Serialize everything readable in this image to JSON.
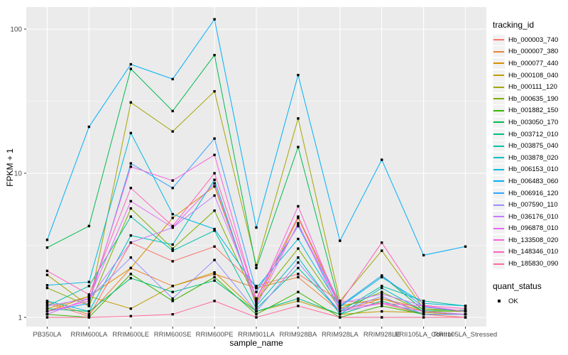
{
  "chart_data": {
    "type": "line",
    "xlabel": "sample_name",
    "ylabel": "FPKM + 1",
    "y_scale": "log10",
    "y_ticks": [
      1,
      10,
      100
    ],
    "y_minor_ticks": [
      3.162,
      31.62
    ],
    "ylim": [
      0.86,
      142
    ],
    "grid": true,
    "panel_bg": "#EBEBEB",
    "grid_color": "#FFFFFF",
    "point_color": "#000000",
    "tick_label_color": "#4D4D4D",
    "legend_position": "right",
    "legend_title": "tracking_id",
    "legend2_title": "quant_status",
    "legend2_items": [
      {
        "label": "OK"
      }
    ],
    "x_categories": [
      "PB350LA",
      "RRIM600LA",
      "RRIM600LE",
      "RRIM600SE",
      "RRIM600PE",
      "RRIM901LA",
      "RRIM928BA",
      "RRIM928LA",
      "RRIM928LE",
      "RRII105LA_Control",
      "RRII105LA_Stressed"
    ],
    "series": [
      {
        "name": "Hb_000003_740",
        "color": "#F8766D",
        "values": [
          1.25,
          1.02,
          3.3,
          2.45,
          3.1,
          1.65,
          2.0,
          1.3,
          1.25,
          1.05,
          1.0
        ]
      },
      {
        "name": "Hb_000007_380",
        "color": "#EA8331",
        "values": [
          1.28,
          1.05,
          2.2,
          1.65,
          2.0,
          1.6,
          1.9,
          1.1,
          1.35,
          1.15,
          1.1
        ]
      },
      {
        "name": "Hb_000077_440",
        "color": "#D89000",
        "values": [
          1.1,
          1.4,
          2.2,
          4.9,
          8.1,
          1.25,
          4.9,
          1.2,
          1.35,
          1.1,
          1.05
        ]
      },
      {
        "name": "Hb_000108_040",
        "color": "#C09B00",
        "values": [
          1.15,
          1.4,
          1.15,
          1.65,
          2.05,
          1.1,
          1.3,
          1.05,
          1.1,
          1.08,
          1.05
        ]
      },
      {
        "name": "Hb_000111_120",
        "color": "#A3A500",
        "values": [
          1.97,
          1.2,
          31.0,
          19.5,
          37.0,
          2.3,
          24.0,
          1.3,
          2.9,
          1.15,
          1.1
        ]
      },
      {
        "name": "Hb_000635_190",
        "color": "#7CAE00",
        "values": [
          1.6,
          1.2,
          5.7,
          3.0,
          5.5,
          1.3,
          3.0,
          1.15,
          1.5,
          1.1,
          1.1
        ]
      },
      {
        "name": "Hb_001882_150",
        "color": "#39B600",
        "values": [
          1.05,
          1.0,
          2.0,
          1.3,
          1.9,
          1.05,
          1.5,
          1.0,
          1.2,
          1.05,
          1.05
        ]
      },
      {
        "name": "Hb_003050_170",
        "color": "#00BB4E",
        "values": [
          3.05,
          4.3,
          53.0,
          27.0,
          66.0,
          2.2,
          15.2,
          1.2,
          1.95,
          1.12,
          1.12
        ]
      },
      {
        "name": "Hb_003712_010",
        "color": "#00BF7D",
        "values": [
          1.15,
          1.1,
          1.87,
          1.5,
          1.8,
          1.1,
          1.35,
          1.05,
          1.3,
          1.05,
          1.05
        ]
      },
      {
        "name": "Hb_003875_040",
        "color": "#00C1A3",
        "values": [
          1.2,
          1.65,
          5.0,
          2.9,
          4.0,
          1.15,
          2.2,
          1.1,
          1.65,
          1.3,
          1.2
        ]
      },
      {
        "name": "Hb_003878_020",
        "color": "#00BFC4",
        "values": [
          1.3,
          1.1,
          3.7,
          3.2,
          9.0,
          1.2,
          2.6,
          1.05,
          1.6,
          1.1,
          1.05
        ]
      },
      {
        "name": "Hb_006153_010",
        "color": "#00BAE0",
        "values": [
          1.67,
          1.76,
          19.0,
          5.2,
          4.1,
          1.6,
          3.5,
          1.18,
          1.9,
          1.25,
          1.2
        ]
      },
      {
        "name": "Hb_006483_060",
        "color": "#00B0F6",
        "values": [
          3.45,
          21.0,
          57.0,
          45.0,
          117.0,
          4.2,
          48.0,
          3.4,
          12.4,
          2.7,
          3.1
        ]
      },
      {
        "name": "Hb_006916_120",
        "color": "#35A2FF",
        "values": [
          1.1,
          1.25,
          11.7,
          7.9,
          17.4,
          1.5,
          4.3,
          1.2,
          1.95,
          1.18,
          1.1
        ]
      },
      {
        "name": "Hb_007590_110",
        "color": "#9590FF",
        "values": [
          1.05,
          1.35,
          2.6,
          1.35,
          2.5,
          1.1,
          2.4,
          1.1,
          1.4,
          1.05,
          1.05
        ]
      },
      {
        "name": "Hb_036176_010",
        "color": "#C77CFF",
        "values": [
          1.2,
          1.35,
          3.3,
          4.2,
          7.0,
          1.35,
          4.4,
          1.25,
          1.45,
          1.2,
          1.1
        ]
      },
      {
        "name": "Hb_096878_010",
        "color": "#E76BF3",
        "values": [
          1.05,
          1.35,
          6.4,
          4.2,
          8.5,
          1.2,
          4.5,
          1.1,
          1.25,
          1.1,
          1.05
        ]
      },
      {
        "name": "Hb_133508_020",
        "color": "#FA62DB",
        "values": [
          1.1,
          1.3,
          11.1,
          8.9,
          13.4,
          1.3,
          5.9,
          1.15,
          1.25,
          1.2,
          1.1
        ]
      },
      {
        "name": "Hb_148346_010",
        "color": "#FF62BC",
        "values": [
          2.1,
          1.44,
          7.9,
          4.3,
          10.0,
          1.35,
          5.0,
          1.25,
          3.3,
          1.21,
          1.15
        ]
      },
      {
        "name": "Hb_185830_090",
        "color": "#FF6A98",
        "values": [
          1.0,
          1.0,
          1.02,
          1.05,
          1.3,
          1.0,
          1.2,
          1.0,
          1.0,
          1.0,
          1.0
        ]
      }
    ]
  }
}
